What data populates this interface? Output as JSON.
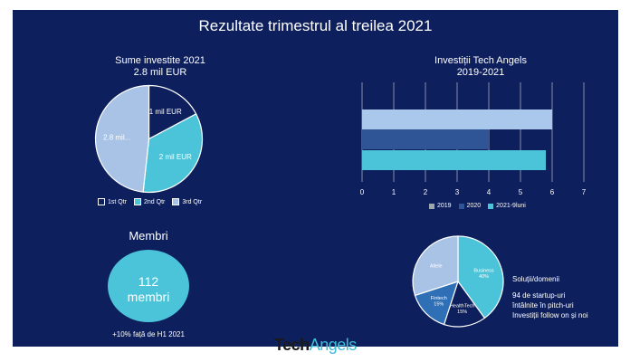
{
  "slide": {
    "title": "Rezultate trimestrul al treilea 2021",
    "background": "#0d1f5c"
  },
  "chart_data": [
    {
      "type": "pie",
      "title": "Sume investite 2021",
      "subtitle": "2.8 mil EUR",
      "categories": [
        "1st Qtr",
        "2nd Qtr",
        "3rd Qtr"
      ],
      "values": [
        1,
        2,
        2.8
      ],
      "data_labels": [
        "1 mil EUR",
        "2 mil EUR",
        "2.8 mil..."
      ],
      "colors": [
        "#0d1f5c",
        "#4bc3d9",
        "#a9c3e6"
      ],
      "legend_position": "bottom"
    },
    {
      "type": "bar",
      "orientation": "horizontal",
      "title": "Investiții Tech Angels",
      "subtitle": "2019-2021",
      "series": [
        {
          "name": "2019",
          "values": [
            0
          ],
          "color": "#9da7b0"
        },
        {
          "name": "2020",
          "values": [
            4
          ],
          "color": "#2f5597"
        },
        {
          "name": "2021-9luni",
          "values": [
            5.8
          ],
          "color": "#4bc3d9"
        }
      ],
      "background_bar": {
        "value": 6,
        "color": "#a9c8ec"
      },
      "xlim": [
        0,
        7
      ],
      "ticks": [
        "0",
        "1",
        "2",
        "3",
        "4",
        "5",
        "6",
        "7"
      ],
      "grid": true,
      "legend_position": "bottom"
    },
    {
      "type": "pie",
      "categories": [
        "Business",
        "HealthTech",
        "Fintech",
        "Altele"
      ],
      "values": [
        40,
        15,
        15,
        30
      ],
      "data_labels": [
        "Business\n40%",
        "HealthTech\n15%",
        "Fintech\n15%",
        "Altele"
      ],
      "colors": [
        "#4bc3d9",
        "#0d1f5c",
        "#2f6fb5",
        "#a9c3e6"
      ]
    }
  ],
  "membri": {
    "heading": "Membri",
    "count": "112",
    "unit": "membri",
    "note": "+10% față de H1 2021",
    "circle_color": "#4bc3d9"
  },
  "domenii": {
    "title": "Soluții/domenii",
    "line1": "94 de startup-uri",
    "line2": "întâlnite în pitch-uri",
    "line3": "Investiții follow on și noi"
  },
  "brand": {
    "part1": "Tech",
    "part2": "Angels"
  }
}
